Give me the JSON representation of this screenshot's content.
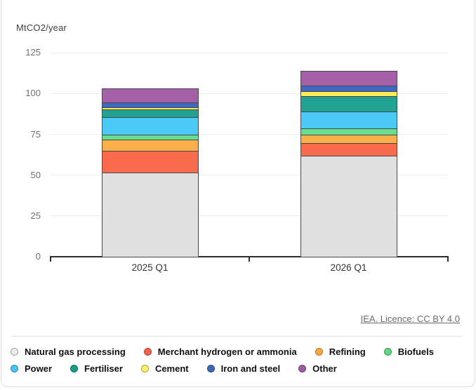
{
  "header": {
    "unit_label": "MtCO2/year"
  },
  "footer": {
    "license_text": "IEA. Licence: CC BY 4.0"
  },
  "chart_data": {
    "type": "bar",
    "stacked": true,
    "title": "",
    "xlabel": "",
    "ylabel": "MtCO2/year",
    "categories": [
      "2025 Q1",
      "2026 Q1"
    ],
    "series": [
      {
        "name": "Natural gas processing",
        "color": "#e1e1e1",
        "legend_color": "#ececec",
        "values": [
          51.5,
          62
        ]
      },
      {
        "name": "Merchant hydrogen or ammonia",
        "color": "#f96b4d",
        "legend_color": "#f4624a",
        "values": [
          13.5,
          7.5
        ]
      },
      {
        "name": "Refining",
        "color": "#fbb04c",
        "legend_color": "#f9a83d",
        "values": [
          7,
          5.5
        ]
      },
      {
        "name": "Biofuels",
        "color": "#67de8d",
        "legend_color": "#5cd97f",
        "values": [
          3,
          3.5
        ]
      },
      {
        "name": "Power",
        "color": "#4bc9f7",
        "legend_color": "#45c5f5",
        "values": [
          10.5,
          10.5
        ]
      },
      {
        "name": "Fertiliser",
        "color": "#20a392",
        "legend_color": "#1b9e89",
        "values": [
          5,
          9.5
        ]
      },
      {
        "name": "Cement",
        "color": "#fdee57",
        "legend_color": "#fdee6a",
        "values": [
          1,
          3
        ]
      },
      {
        "name": "Iron and steel",
        "color": "#3e69c3",
        "legend_color": "#3c69bc",
        "values": [
          3,
          3.5
        ]
      },
      {
        "name": "Other",
        "color": "#a461a7",
        "legend_color": "#9c5ea2",
        "values": [
          8.5,
          9
        ]
      }
    ],
    "totals": [
      103,
      114
    ],
    "y_ticks": [
      0,
      25,
      50,
      75,
      100,
      125
    ],
    "ylim": [
      0,
      125
    ],
    "grid": true,
    "legend_position": "bottom"
  }
}
